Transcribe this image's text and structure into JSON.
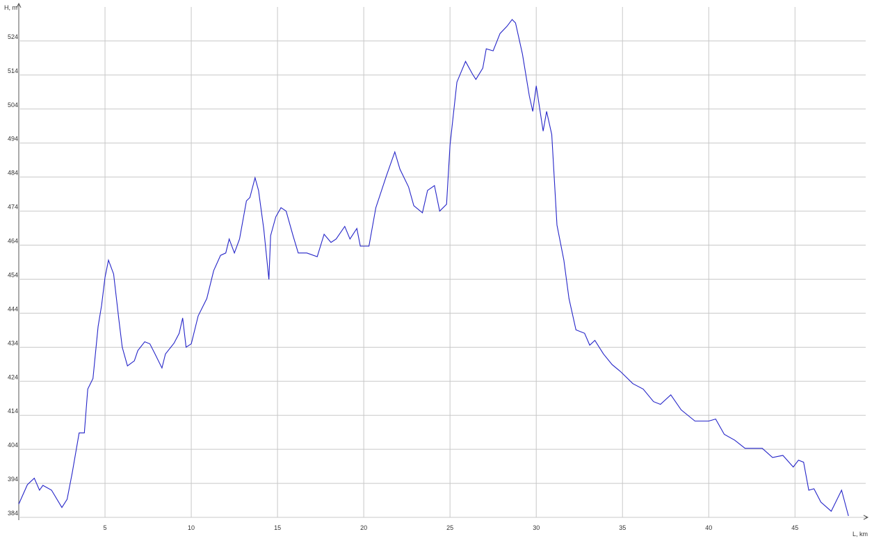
{
  "chart_data": {
    "type": "line",
    "y_label": "H, m",
    "x_label": "L, km",
    "xlim": [
      0,
      49.1
    ],
    "ylim": [
      384,
      534
    ],
    "xticks": [
      5,
      10,
      15,
      20,
      25,
      30,
      35,
      40,
      45
    ],
    "yticks": [
      384,
      394,
      404,
      414,
      424,
      434,
      444,
      454,
      464,
      474,
      484,
      494,
      504,
      514,
      524
    ],
    "grid": true,
    "series": [
      {
        "color": "#2424c8",
        "x": [
          0,
          0.5,
          0.9,
          1.2,
          1.4,
          1.9,
          2.5,
          2.8,
          3.1,
          3.5,
          3.8,
          4.0,
          4.3,
          4.6,
          4.8,
          5.0,
          5.2,
          5.5,
          5.8,
          6.0,
          6.3,
          6.7,
          6.9,
          7.3,
          7.6,
          7.9,
          8.3,
          8.5,
          9.0,
          9.3,
          9.5,
          9.7,
          10.0,
          10.4,
          10.9,
          11.3,
          11.7,
          12.0,
          12.2,
          12.5,
          12.8,
          13.2,
          13.4,
          13.7,
          13.9,
          14.2,
          14.5,
          14.6,
          14.9,
          15.2,
          15.5,
          15.9,
          16.2,
          16.7,
          17.3,
          17.7,
          18.1,
          18.4,
          18.9,
          19.2,
          19.6,
          19.8,
          20.3,
          20.7,
          21.3,
          21.8,
          22.1,
          22.6,
          22.9,
          23.4,
          23.7,
          24.1,
          24.4,
          24.8,
          25.0,
          25.4,
          25.9,
          26.3,
          26.5,
          26.9,
          27.1,
          27.5,
          27.9,
          28.3,
          28.6,
          28.8,
          29.2,
          29.6,
          29.8,
          30.0,
          30.4,
          30.6,
          30.9,
          31.2,
          31.6,
          31.9,
          32.3,
          32.8,
          33.1,
          33.4,
          33.9,
          34.4,
          34.9,
          35.6,
          36.2,
          36.8,
          37.2,
          37.8,
          38.4,
          39.2,
          40.0,
          40.4,
          40.9,
          41.5,
          42.1,
          43.1,
          43.7,
          44.3,
          44.9,
          45.2,
          45.5,
          45.8,
          46.1,
          46.5,
          47.1,
          47.7,
          48.1
        ],
        "values": [
          387.9,
          393.6,
          395.5,
          392,
          393.4,
          392,
          386.9,
          389.3,
          397.1,
          408.8,
          408.8,
          421.7,
          424.8,
          440.1,
          446.3,
          454.5,
          459.6,
          455.5,
          442.2,
          434,
          428.5,
          430,
          433,
          435.6,
          435,
          432,
          427.9,
          432,
          435.2,
          438.1,
          442.6,
          434,
          435,
          443.2,
          448.3,
          456.5,
          461,
          461.7,
          465.8,
          461.7,
          465.8,
          477,
          478,
          483.8,
          480.1,
          468.8,
          453.9,
          466.8,
          472.3,
          475,
          474,
          466.8,
          461.7,
          461.7,
          460.6,
          467.2,
          464.8,
          465.8,
          469.5,
          465.8,
          468.9,
          463.7,
          463.7,
          475,
          484.2,
          491.4,
          486.3,
          481.1,
          475.6,
          473.5,
          480.1,
          481.5,
          474,
          476,
          493.4,
          511.9,
          518,
          514.3,
          512.7,
          516,
          521.7,
          521.1,
          526.2,
          528.3,
          530.3,
          529.3,
          520.1,
          507.8,
          503.3,
          510.8,
          497.5,
          503.3,
          496.5,
          469.9,
          459.6,
          448.3,
          439.1,
          438.1,
          434.6,
          436,
          432,
          428.9,
          426.8,
          423.3,
          421.7,
          418,
          417.2,
          420,
          415.6,
          412.3,
          412.3,
          412.9,
          408.4,
          406.7,
          404.3,
          404.3,
          401.6,
          402.2,
          398.8,
          400.8,
          400.2,
          392,
          392.4,
          388.5,
          385.8,
          392,
          384.4
        ]
      }
    ]
  }
}
